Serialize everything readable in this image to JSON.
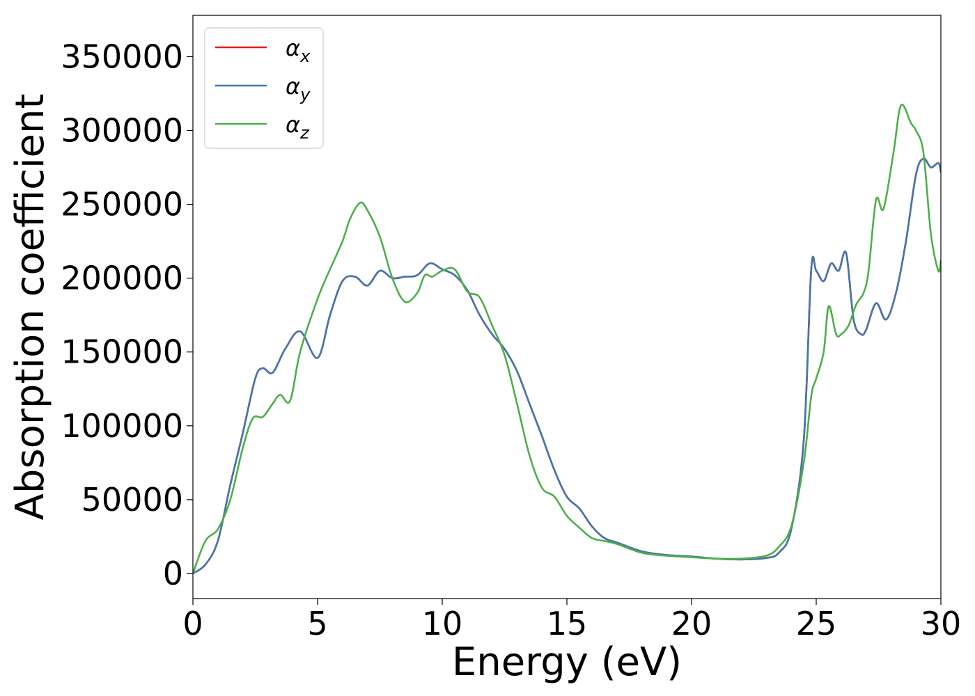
{
  "chart_data": {
    "type": "line",
    "xlabel": "Energy (eV)",
    "ylabel": "Absorption coefficient",
    "xlim": [
      0,
      30
    ],
    "ylim": [
      -17000,
      378000
    ],
    "xticks": [
      0,
      5,
      10,
      15,
      20,
      25,
      30
    ],
    "yticks": [
      0,
      50000,
      100000,
      150000,
      200000,
      250000,
      300000,
      350000
    ],
    "grid": false,
    "legend_position": "top-left",
    "series": [
      {
        "name": "α",
        "subscript": "x",
        "color": "#e41a1c",
        "x": [
          0,
          0.5,
          1.0,
          1.5,
          2.0,
          2.5,
          2.8,
          3.2,
          3.7,
          4.3,
          5.0,
          5.5,
          6.0,
          6.5,
          7.0,
          7.5,
          8.0,
          8.5,
          9.0,
          9.5,
          10.0,
          10.5,
          11.0,
          11.5,
          12.0,
          12.5,
          13.0,
          13.5,
          14.0,
          14.5,
          15.0,
          15.5,
          16.0,
          16.5,
          17.0,
          18.0,
          19.0,
          20.0,
          21.0,
          22.0,
          23.0,
          23.5,
          24.0,
          24.5,
          24.8,
          25.0,
          25.3,
          25.6,
          25.9,
          26.2,
          26.5,
          26.8,
          27.0,
          27.4,
          27.8,
          28.2,
          28.6,
          29.0,
          29.3,
          29.6,
          29.9,
          30.0
        ],
        "y": [
          0,
          6000,
          22000,
          60000,
          95000,
          132000,
          139000,
          136000,
          152000,
          164000,
          146000,
          175000,
          198000,
          201000,
          195000,
          205000,
          200000,
          201000,
          202000,
          210000,
          206000,
          202000,
          192000,
          175000,
          162000,
          152000,
          137000,
          115000,
          93000,
          70000,
          52000,
          44000,
          32000,
          24000,
          21000,
          15000,
          12500,
          11500,
          10000,
          9500,
          10500,
          14000,
          30000,
          90000,
          206000,
          205000,
          198000,
          210000,
          205000,
          217000,
          172000,
          162000,
          165000,
          183000,
          172000,
          190000,
          225000,
          270000,
          281000,
          275000,
          278000,
          272000
        ]
      },
      {
        "name": "α",
        "subscript": "y",
        "color": "#4477aa",
        "x": [
          0,
          0.5,
          1.0,
          1.5,
          2.0,
          2.5,
          2.8,
          3.2,
          3.7,
          4.3,
          5.0,
          5.5,
          6.0,
          6.5,
          7.0,
          7.5,
          8.0,
          8.5,
          9.0,
          9.5,
          10.0,
          10.5,
          11.0,
          11.5,
          12.0,
          12.5,
          13.0,
          13.5,
          14.0,
          14.5,
          15.0,
          15.5,
          16.0,
          16.5,
          17.0,
          18.0,
          19.0,
          20.0,
          21.0,
          22.0,
          23.0,
          23.5,
          24.0,
          24.5,
          24.8,
          25.0,
          25.3,
          25.6,
          25.9,
          26.2,
          26.5,
          26.8,
          27.0,
          27.4,
          27.8,
          28.2,
          28.6,
          29.0,
          29.3,
          29.6,
          29.9,
          30.0
        ],
        "y": [
          0,
          6000,
          22000,
          60000,
          95000,
          132000,
          139000,
          136000,
          152000,
          164000,
          146000,
          175000,
          198000,
          201000,
          195000,
          205000,
          200000,
          201000,
          202000,
          210000,
          206000,
          202000,
          192000,
          175000,
          162000,
          152000,
          137000,
          115000,
          93000,
          70000,
          52000,
          44000,
          32000,
          24000,
          21000,
          15000,
          12500,
          11500,
          10000,
          9500,
          10500,
          14000,
          30000,
          90000,
          206000,
          205000,
          198000,
          210000,
          205000,
          217000,
          172000,
          162000,
          165000,
          183000,
          172000,
          190000,
          225000,
          270000,
          281000,
          275000,
          278000,
          272000
        ]
      },
      {
        "name": "α",
        "subscript": "z",
        "color": "#4daf4a",
        "x": [
          0,
          0.5,
          1.0,
          1.5,
          2.0,
          2.4,
          2.8,
          3.2,
          3.5,
          3.9,
          4.3,
          5.0,
          5.5,
          6.0,
          6.3,
          6.7,
          7.0,
          7.5,
          8.0,
          8.5,
          9.0,
          9.3,
          9.6,
          10.0,
          10.5,
          11.0,
          11.5,
          12.0,
          12.5,
          13.0,
          13.5,
          14.0,
          14.5,
          15.0,
          15.5,
          16.0,
          16.5,
          17.0,
          18.0,
          19.0,
          20.0,
          21.0,
          22.0,
          23.0,
          23.5,
          24.0,
          24.5,
          24.8,
          25.0,
          25.3,
          25.5,
          25.8,
          26.0,
          26.3,
          26.6,
          26.9,
          27.1,
          27.4,
          27.7,
          28.1,
          28.4,
          28.8,
          29.0,
          29.3,
          29.6,
          29.9,
          30.0
        ],
        "y": [
          0,
          22000,
          30000,
          50000,
          85000,
          105000,
          106000,
          115000,
          121000,
          117000,
          150000,
          186000,
          206000,
          225000,
          240000,
          251000,
          246000,
          228000,
          200000,
          184000,
          190000,
          202000,
          201000,
          205000,
          206000,
          191000,
          187000,
          168000,
          148000,
          115000,
          80000,
          58000,
          52000,
          39000,
          31000,
          24000,
          22000,
          20000,
          14000,
          12000,
          11000,
          10000,
          10000,
          12000,
          18000,
          32000,
          75000,
          120000,
          132000,
          150000,
          181000,
          162000,
          162000,
          168000,
          182000,
          190000,
          205000,
          253000,
          247000,
          285000,
          317000,
          305000,
          300000,
          285000,
          230000,
          205000,
          212000
        ]
      }
    ]
  }
}
